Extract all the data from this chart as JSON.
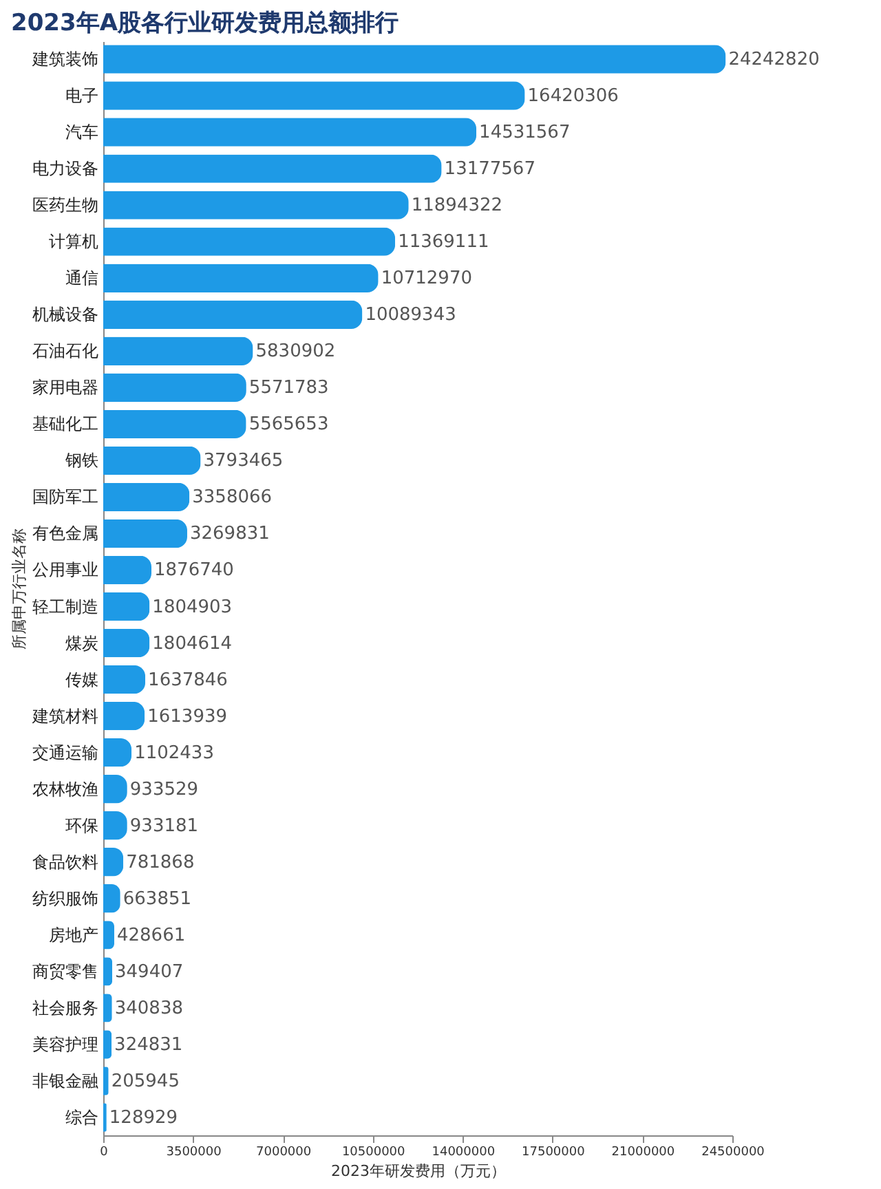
{
  "chart_data": {
    "type": "bar",
    "orientation": "horizontal",
    "title": "2023年A股各行业研发费用总额排行",
    "xlabel": "2023年研发费用（万元）",
    "ylabel": "所属申万行业名称",
    "categories": [
      "建筑装饰",
      "电子",
      "汽车",
      "电力设备",
      "医药生物",
      "计算机",
      "通信",
      "机械设备",
      "石油石化",
      "家用电器",
      "基础化工",
      "钢铁",
      "国防军工",
      "有色金属",
      "公用事业",
      "轻工制造",
      "煤炭",
      "传媒",
      "建筑材料",
      "交通运输",
      "农林牧渔",
      "环保",
      "食品饮料",
      "纺织服饰",
      "房地产",
      "商贸零售",
      "社会服务",
      "美容护理",
      "非银金融",
      "综合"
    ],
    "values": [
      24242820,
      16420306,
      14531567,
      13177567,
      11894322,
      11369111,
      10712970,
      10089343,
      5830902,
      5571783,
      5565653,
      3793465,
      3358066,
      3269831,
      1876740,
      1804903,
      1804614,
      1637846,
      1613939,
      1102433,
      933529,
      933181,
      781868,
      663851,
      428661,
      349407,
      340838,
      324831,
      205945,
      128929
    ],
    "color": "#1e9ae6",
    "xlim": [
      0,
      24500000
    ],
    "xticks": [
      0,
      3500000,
      7000000,
      10500000,
      14000000,
      17500000,
      21000000,
      24500000
    ],
    "data_labels": true,
    "grid": false
  }
}
